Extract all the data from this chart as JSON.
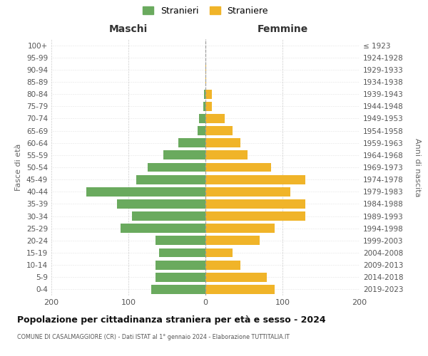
{
  "age_groups": [
    "100+",
    "95-99",
    "90-94",
    "85-89",
    "80-84",
    "75-79",
    "70-74",
    "65-69",
    "60-64",
    "55-59",
    "50-54",
    "45-49",
    "40-44",
    "35-39",
    "30-34",
    "25-29",
    "20-24",
    "15-19",
    "10-14",
    "5-9",
    "0-4"
  ],
  "birth_years": [
    "≤ 1923",
    "1924-1928",
    "1929-1933",
    "1934-1938",
    "1939-1943",
    "1944-1948",
    "1949-1953",
    "1954-1958",
    "1959-1963",
    "1964-1968",
    "1969-1973",
    "1974-1978",
    "1979-1983",
    "1984-1988",
    "1989-1993",
    "1994-1998",
    "1999-2003",
    "2004-2008",
    "2009-2013",
    "2014-2018",
    "2019-2023"
  ],
  "maschi": [
    0,
    0,
    0,
    0,
    2,
    3,
    8,
    10,
    35,
    55,
    75,
    90,
    155,
    115,
    95,
    110,
    65,
    60,
    65,
    65,
    70
  ],
  "femmine": [
    0,
    0,
    1,
    1,
    8,
    8,
    25,
    35,
    45,
    55,
    85,
    130,
    110,
    130,
    130,
    90,
    70,
    35,
    45,
    80,
    90
  ],
  "maschi_color": "#6aaa5e",
  "femmine_color": "#f0b429",
  "background_color": "#ffffff",
  "grid_color": "#cccccc",
  "title": "Popolazione per cittadinanza straniera per età e sesso - 2024",
  "subtitle": "COMUNE DI CASALMAGGIORE (CR) - Dati ISTAT al 1° gennaio 2024 - Elaborazione TUTTITALIA.IT",
  "ylabel_left": "Fasce di età",
  "ylabel_right": "Anni di nascita",
  "xlabel_maschi": "Maschi",
  "xlabel_femmine": "Femmine",
  "legend_maschi": "Stranieri",
  "legend_femmine": "Straniere",
  "xlim": 200,
  "bar_height": 0.75
}
